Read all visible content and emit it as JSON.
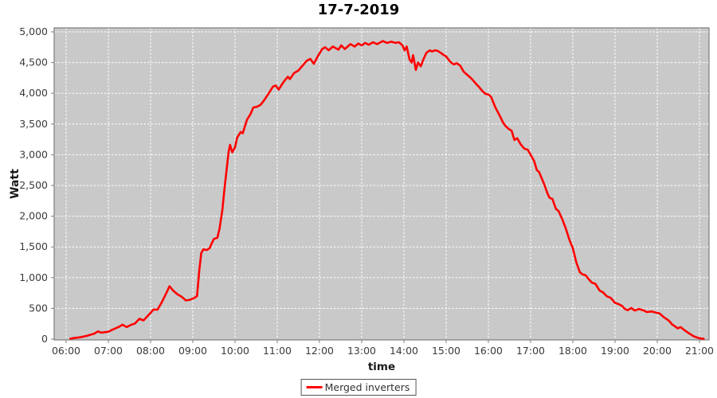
{
  "chart_data": {
    "type": "line",
    "title": "17-7-2019",
    "xlabel": "time",
    "ylabel": "Watt",
    "x_ticks": [
      "06:00",
      "07:00",
      "08:00",
      "09:00",
      "10:00",
      "11:00",
      "12:00",
      "13:00",
      "14:00",
      "15:00",
      "16:00",
      "17:00",
      "18:00",
      "19:00",
      "20:00",
      "21:00"
    ],
    "y_ticks": [
      0,
      500,
      1000,
      1500,
      2000,
      2500,
      3000,
      3500,
      4000,
      4500,
      5000
    ],
    "y_tick_labels": [
      "0",
      "500",
      "1,000",
      "1,500",
      "2,000",
      "2,500",
      "3,000",
      "3,500",
      "4,000",
      "4,500",
      "5,000"
    ],
    "ylim": [
      0,
      5000
    ],
    "grid": true,
    "grid_color": "#ffffff",
    "plot_bg": "#c9c9c9",
    "axis_color": "#7d7d7d",
    "legend_position": "bottom",
    "series": [
      {
        "name": "Merged inverters",
        "color": "#ff0000",
        "points": [
          [
            "06:06",
            5
          ],
          [
            "06:10",
            15
          ],
          [
            "06:20",
            30
          ],
          [
            "06:30",
            55
          ],
          [
            "06:40",
            90
          ],
          [
            "06:45",
            125
          ],
          [
            "06:50",
            105
          ],
          [
            "06:57",
            115
          ],
          [
            "07:00",
            120
          ],
          [
            "07:08",
            165
          ],
          [
            "07:15",
            200
          ],
          [
            "07:20",
            235
          ],
          [
            "07:26",
            195
          ],
          [
            "07:32",
            230
          ],
          [
            "07:38",
            255
          ],
          [
            "07:44",
            330
          ],
          [
            "07:50",
            305
          ],
          [
            "07:56",
            380
          ],
          [
            "08:00",
            425
          ],
          [
            "08:04",
            480
          ],
          [
            "08:10",
            480
          ],
          [
            "08:16",
            600
          ],
          [
            "08:22",
            740
          ],
          [
            "08:27",
            860
          ],
          [
            "08:32",
            790
          ],
          [
            "08:38",
            730
          ],
          [
            "08:44",
            690
          ],
          [
            "08:50",
            630
          ],
          [
            "08:56",
            640
          ],
          [
            "09:02",
            670
          ],
          [
            "09:06",
            700
          ],
          [
            "09:09",
            1100
          ],
          [
            "09:12",
            1400
          ],
          [
            "09:15",
            1460
          ],
          [
            "09:20",
            1450
          ],
          [
            "09:24",
            1480
          ],
          [
            "09:27",
            1560
          ],
          [
            "09:30",
            1630
          ],
          [
            "09:35",
            1650
          ],
          [
            "09:38",
            1800
          ],
          [
            "09:42",
            2100
          ],
          [
            "09:45",
            2450
          ],
          [
            "09:48",
            2750
          ],
          [
            "09:51",
            3050
          ],
          [
            "09:53",
            3160
          ],
          [
            "09:56",
            3040
          ],
          [
            "10:00",
            3120
          ],
          [
            "10:03",
            3280
          ],
          [
            "10:08",
            3370
          ],
          [
            "10:11",
            3350
          ],
          [
            "10:17",
            3570
          ],
          [
            "10:22",
            3660
          ],
          [
            "10:26",
            3770
          ],
          [
            "10:31",
            3780
          ],
          [
            "10:36",
            3810
          ],
          [
            "10:41",
            3880
          ],
          [
            "10:48",
            4000
          ],
          [
            "10:54",
            4110
          ],
          [
            "10:58",
            4125
          ],
          [
            "11:02",
            4060
          ],
          [
            "11:07",
            4150
          ],
          [
            "11:10",
            4200
          ],
          [
            "11:15",
            4270
          ],
          [
            "11:18",
            4230
          ],
          [
            "11:24",
            4330
          ],
          [
            "11:30",
            4370
          ],
          [
            "11:36",
            4450
          ],
          [
            "11:42",
            4530
          ],
          [
            "11:47",
            4560
          ],
          [
            "11:52",
            4480
          ],
          [
            "11:58",
            4610
          ],
          [
            "12:04",
            4720
          ],
          [
            "12:08",
            4750
          ],
          [
            "12:13",
            4700
          ],
          [
            "12:19",
            4760
          ],
          [
            "12:27",
            4710
          ],
          [
            "12:31",
            4780
          ],
          [
            "12:36",
            4720
          ],
          [
            "12:44",
            4800
          ],
          [
            "12:50",
            4760
          ],
          [
            "12:55",
            4810
          ],
          [
            "13:00",
            4780
          ],
          [
            "13:05",
            4820
          ],
          [
            "13:10",
            4790
          ],
          [
            "13:16",
            4830
          ],
          [
            "13:22",
            4800
          ],
          [
            "13:30",
            4850
          ],
          [
            "13:36",
            4820
          ],
          [
            "13:42",
            4840
          ],
          [
            "13:48",
            4820
          ],
          [
            "13:53",
            4830
          ],
          [
            "13:58",
            4780
          ],
          [
            "14:01",
            4700
          ],
          [
            "14:04",
            4760
          ],
          [
            "14:08",
            4550
          ],
          [
            "14:11",
            4500
          ],
          [
            "14:13",
            4620
          ],
          [
            "14:17",
            4380
          ],
          [
            "14:20",
            4500
          ],
          [
            "14:24",
            4440
          ],
          [
            "14:28",
            4560
          ],
          [
            "14:32",
            4660
          ],
          [
            "14:37",
            4700
          ],
          [
            "14:40",
            4680
          ],
          [
            "14:44",
            4700
          ],
          [
            "14:48",
            4690
          ],
          [
            "14:52",
            4660
          ],
          [
            "14:57",
            4620
          ],
          [
            "15:00",
            4600
          ],
          [
            "15:06",
            4510
          ],
          [
            "15:11",
            4470
          ],
          [
            "15:15",
            4490
          ],
          [
            "15:20",
            4450
          ],
          [
            "15:25",
            4350
          ],
          [
            "15:30",
            4300
          ],
          [
            "15:36",
            4240
          ],
          [
            "15:42",
            4160
          ],
          [
            "15:47",
            4100
          ],
          [
            "15:52",
            4030
          ],
          [
            "15:56",
            3990
          ],
          [
            "16:00",
            3980
          ],
          [
            "16:04",
            3940
          ],
          [
            "16:10",
            3770
          ],
          [
            "16:16",
            3640
          ],
          [
            "16:21",
            3520
          ],
          [
            "16:25",
            3460
          ],
          [
            "16:29",
            3420
          ],
          [
            "16:33",
            3390
          ],
          [
            "16:37",
            3240
          ],
          [
            "16:41",
            3270
          ],
          [
            "16:46",
            3170
          ],
          [
            "16:51",
            3100
          ],
          [
            "16:56",
            3080
          ],
          [
            "17:00",
            3000
          ],
          [
            "17:05",
            2900
          ],
          [
            "17:09",
            2750
          ],
          [
            "17:12",
            2720
          ],
          [
            "17:19",
            2530
          ],
          [
            "17:24",
            2370
          ],
          [
            "17:27",
            2300
          ],
          [
            "17:31",
            2280
          ],
          [
            "17:36",
            2120
          ],
          [
            "17:40",
            2080
          ],
          [
            "17:45",
            1950
          ],
          [
            "17:50",
            1800
          ],
          [
            "17:55",
            1620
          ],
          [
            "18:00",
            1480
          ],
          [
            "18:05",
            1250
          ],
          [
            "18:10",
            1090
          ],
          [
            "18:14",
            1050
          ],
          [
            "18:18",
            1040
          ],
          [
            "18:23",
            970
          ],
          [
            "18:27",
            920
          ],
          [
            "18:32",
            900
          ],
          [
            "18:38",
            790
          ],
          [
            "18:43",
            760
          ],
          [
            "18:48",
            700
          ],
          [
            "18:54",
            670
          ],
          [
            "19:00",
            590
          ],
          [
            "19:05",
            570
          ],
          [
            "19:10",
            540
          ],
          [
            "19:14",
            490
          ],
          [
            "19:18",
            470
          ],
          [
            "19:23",
            505
          ],
          [
            "19:28",
            465
          ],
          [
            "19:34",
            490
          ],
          [
            "19:40",
            470
          ],
          [
            "19:45",
            440
          ],
          [
            "19:52",
            450
          ],
          [
            "19:58",
            430
          ],
          [
            "20:03",
            420
          ],
          [
            "20:09",
            360
          ],
          [
            "20:14",
            320
          ],
          [
            "20:17",
            295
          ],
          [
            "20:21",
            240
          ],
          [
            "20:25",
            210
          ],
          [
            "20:29",
            175
          ],
          [
            "20:33",
            195
          ],
          [
            "20:38",
            150
          ],
          [
            "20:43",
            110
          ],
          [
            "20:47",
            80
          ],
          [
            "20:52",
            45
          ],
          [
            "20:57",
            25
          ],
          [
            "21:02",
            10
          ],
          [
            "21:06",
            5
          ]
        ]
      }
    ]
  }
}
